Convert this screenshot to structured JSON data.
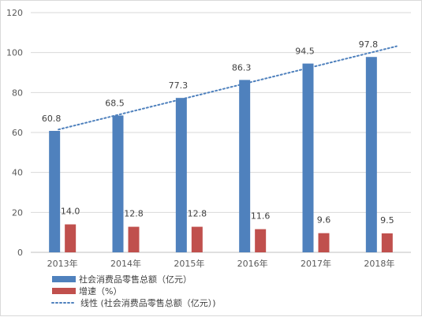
{
  "chart_data": {
    "type": "bar",
    "title": "",
    "xlabel": "",
    "ylabel": "",
    "categories": [
      "2013年",
      "2014年",
      "2015年",
      "2016年",
      "2017年",
      "2018年"
    ],
    "ylim": [
      0,
      120
    ],
    "yticks": [
      0,
      20,
      40,
      60,
      80,
      100,
      120
    ],
    "grid": true,
    "legend_position": "bottom-left",
    "series": [
      {
        "name": "社会消费品零售总额（亿元）",
        "kind": "bar",
        "color": "#4F81BD",
        "values": [
          60.8,
          68.5,
          77.3,
          86.3,
          94.5,
          97.8
        ],
        "labels": [
          "60.8",
          "68.5",
          "77.3",
          "86.3",
          "94.5",
          "97.8"
        ]
      },
      {
        "name": "增速（%）",
        "kind": "bar",
        "color": "#C0504D",
        "values": [
          14.0,
          12.8,
          12.8,
          11.6,
          9.6,
          9.5
        ],
        "labels": [
          "14.0",
          "12.8",
          "12.8",
          "11.6",
          "9.6",
          "9.5"
        ]
      },
      {
        "name": "线性 (社会消费品零售总额（亿元）)",
        "kind": "trendline",
        "color": "#4F81BD",
        "values": [
          61.5,
          69.4,
          77.3,
          85.2,
          93.1,
          101.0
        ]
      }
    ]
  }
}
